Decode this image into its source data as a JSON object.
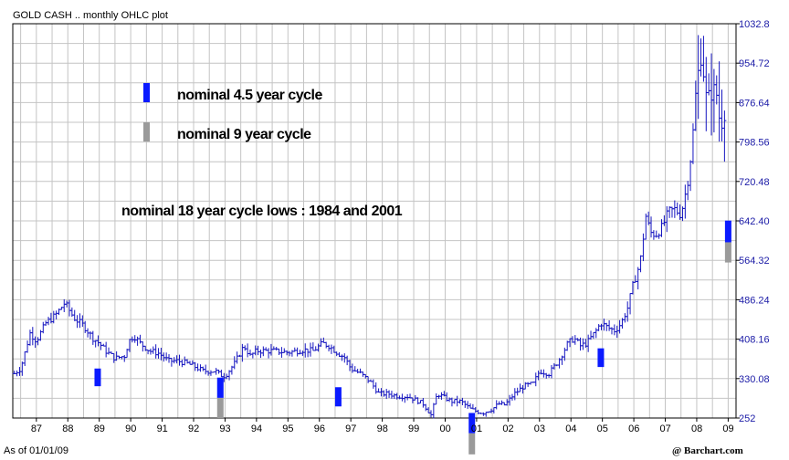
{
  "chart_data": {
    "type": "ohlc",
    "title": "GOLD CASH .. monthly OHLC plot",
    "footer_left": "As of 01/01/09",
    "footer_right": "@ Barchart.com",
    "y_ticks": [
      "1032.8",
      "954.72",
      "876.64",
      "798.56",
      "720.48",
      "642.40",
      "564.32",
      "486.24",
      "408.16",
      "330.08",
      "252"
    ],
    "ylim": [
      252,
      1032.8
    ],
    "x_ticks": [
      "87",
      "88",
      "89",
      "90",
      "91",
      "92",
      "93",
      "94",
      "95",
      "96",
      "97",
      "98",
      "99",
      "00",
      "01",
      "02",
      "03",
      "04",
      "05",
      "06",
      "07",
      "08",
      "09"
    ],
    "xlim": [
      1986.25,
      2009.25
    ],
    "grid": true,
    "price_color": "#1515c0",
    "close_points": [
      [
        1986.3,
        340
      ],
      [
        1986.5,
        350
      ],
      [
        1986.8,
        420
      ],
      [
        1987.0,
        405
      ],
      [
        1987.3,
        440
      ],
      [
        1987.6,
        455
      ],
      [
        1987.9,
        480
      ],
      [
        1988.0,
        470
      ],
      [
        1988.2,
        450
      ],
      [
        1988.5,
        435
      ],
      [
        1988.8,
        410
      ],
      [
        1989.0,
        400
      ],
      [
        1989.2,
        385
      ],
      [
        1989.5,
        370
      ],
      [
        1989.8,
        375
      ],
      [
        1989.95,
        405
      ],
      [
        1990.1,
        415
      ],
      [
        1990.3,
        400
      ],
      [
        1990.6,
        385
      ],
      [
        1990.9,
        380
      ],
      [
        1991.2,
        365
      ],
      [
        1991.5,
        365
      ],
      [
        1991.8,
        360
      ],
      [
        1992.0,
        355
      ],
      [
        1992.3,
        345
      ],
      [
        1992.5,
        345
      ],
      [
        1992.7,
        345
      ],
      [
        1992.85,
        337
      ],
      [
        1993.0,
        335
      ],
      [
        1993.3,
        360
      ],
      [
        1993.6,
        395
      ],
      [
        1993.8,
        375
      ],
      [
        1994.0,
        385
      ],
      [
        1994.5,
        385
      ],
      [
        1995.0,
        382
      ],
      [
        1995.5,
        387
      ],
      [
        1995.8,
        385
      ],
      [
        1996.1,
        400
      ],
      [
        1996.3,
        395
      ],
      [
        1996.6,
        380
      ],
      [
        1996.8,
        372
      ],
      [
        1997.0,
        350
      ],
      [
        1997.3,
        340
      ],
      [
        1997.6,
        325
      ],
      [
        1997.9,
        300
      ],
      [
        1998.2,
        300
      ],
      [
        1998.5,
        295
      ],
      [
        1998.8,
        295
      ],
      [
        1999.0,
        290
      ],
      [
        1999.3,
        280
      ],
      [
        1999.55,
        258
      ],
      [
        1999.75,
        300
      ],
      [
        1999.9,
        295
      ],
      [
        2000.2,
        285
      ],
      [
        2000.5,
        285
      ],
      [
        2000.8,
        270
      ],
      [
        2001.0,
        265
      ],
      [
        2001.2,
        262
      ],
      [
        2001.5,
        270
      ],
      [
        2001.7,
        280
      ],
      [
        2001.9,
        278
      ],
      [
        2002.2,
        300
      ],
      [
        2002.5,
        315
      ],
      [
        2002.8,
        320
      ],
      [
        2003.0,
        345
      ],
      [
        2003.3,
        340
      ],
      [
        2003.6,
        365
      ],
      [
        2003.9,
        400
      ],
      [
        2004.1,
        410
      ],
      [
        2004.3,
        395
      ],
      [
        2004.5,
        400
      ],
      [
        2004.8,
        425
      ],
      [
        2004.95,
        440
      ],
      [
        2005.2,
        430
      ],
      [
        2005.4,
        425
      ],
      [
        2005.6,
        440
      ],
      [
        2005.8,
        470
      ],
      [
        2005.95,
        510
      ],
      [
        2006.2,
        560
      ],
      [
        2006.4,
        660
      ],
      [
        2006.5,
        620
      ],
      [
        2006.7,
        615
      ],
      [
        2006.9,
        630
      ],
      [
        2007.1,
        660
      ],
      [
        2007.3,
        665
      ],
      [
        2007.5,
        655
      ],
      [
        2007.7,
        715
      ],
      [
        2007.85,
        790
      ],
      [
        2008.0,
        920
      ],
      [
        2008.15,
        970
      ],
      [
        2008.3,
        890
      ],
      [
        2008.45,
        890
      ],
      [
        2008.6,
        910
      ],
      [
        2008.75,
        830
      ],
      [
        2008.85,
        840
      ],
      [
        2008.95,
        880
      ]
    ],
    "cycle_markers": [
      {
        "kind": "4.5",
        "x": 1988.95,
        "y_low": 315,
        "y_high": 350
      },
      {
        "kind": "9",
        "x": 1992.85,
        "y_low": 252,
        "y_high": 292
      },
      {
        "kind": "4.5",
        "x": 1992.85,
        "y_low": 292,
        "y_high": 332
      },
      {
        "kind": "4.5",
        "x": 1996.6,
        "y_low": 275,
        "y_high": 313
      },
      {
        "kind": "9",
        "x": 2000.85,
        "y_low": 180,
        "y_high": 222
      },
      {
        "kind": "4.5",
        "x": 2000.85,
        "y_low": 222,
        "y_high": 262
      },
      {
        "kind": "4.5",
        "x": 2004.95,
        "y_low": 353,
        "y_high": 390
      },
      {
        "kind": "9",
        "x": 2009.0,
        "y_low": 560,
        "y_high": 600
      },
      {
        "kind": "4.5",
        "x": 2009.0,
        "y_low": 600,
        "y_high": 643
      }
    ],
    "colors": {
      "4.5": "#0a1aff",
      "9": "#9a9a9a"
    }
  },
  "annotations": {
    "legend_4_5": "nominal 4.5 year cycle",
    "legend_9": "nominal 9 year cycle",
    "cycle_18": "nominal 18 year cycle lows :  1984 and  2001"
  }
}
